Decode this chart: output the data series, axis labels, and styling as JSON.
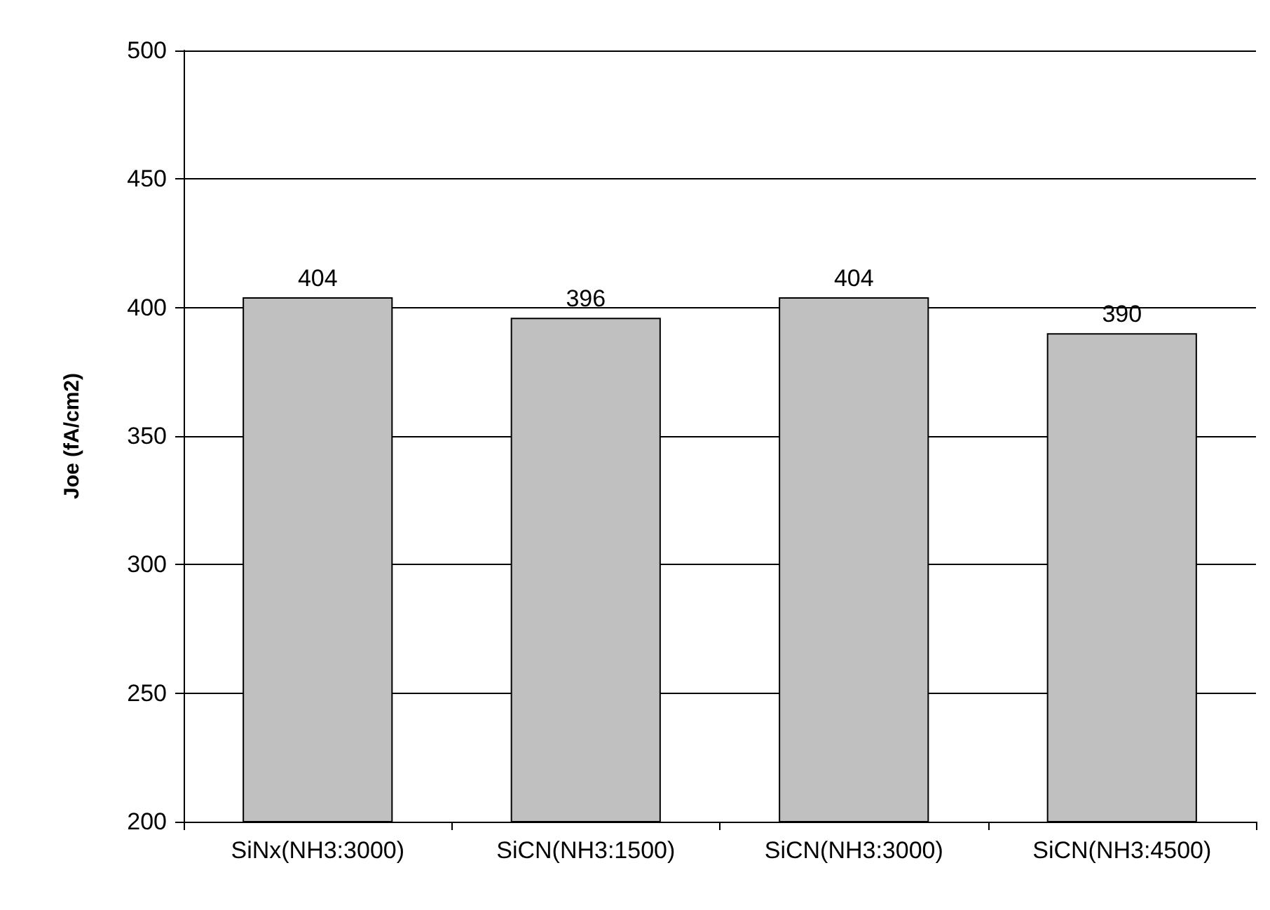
{
  "chart_data": {
    "type": "bar",
    "ylabel": "Joe (fA/cm2)",
    "categories": [
      "SiNx(NH3:3000)",
      "SiCN(NH3:1500)",
      "SiCN(NH3:3000)",
      "SiCN(NH3:4500)"
    ],
    "values": [
      404,
      396,
      404,
      390
    ],
    "color": "#c0c0c0",
    "ylim": [
      200,
      500
    ],
    "yticks": [
      200,
      250,
      300,
      350,
      400,
      450,
      500
    ],
    "grid": "y",
    "data_labels": true
  }
}
